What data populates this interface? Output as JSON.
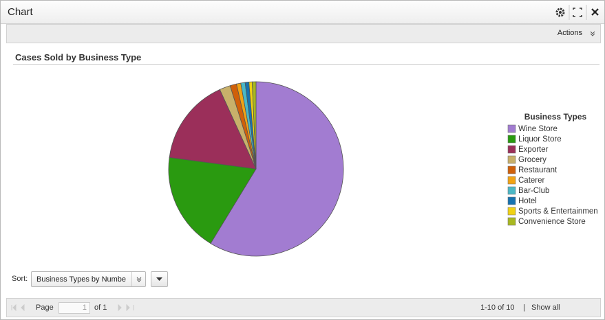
{
  "window": {
    "title": "Chart",
    "actions": "Actions",
    "sort_label": "Sort:",
    "sort_value": "Business Types by Numbe",
    "pager": {
      "page_label": "Page",
      "page_input": "1",
      "of": "of 1",
      "range": "1-10 of 10",
      "separator": "|",
      "show_all": "Show all"
    }
  },
  "chart_data": {
    "type": "pie",
    "title": "Cases Sold by Business Type",
    "legend_title": "Business Types",
    "categories": [
      "Wine Store",
      "Liquor Store",
      "Exporter",
      "Grocery",
      "Restaurant",
      "Caterer",
      "Bar-Club",
      "Hotel",
      "Sports & Entertainmen",
      "Convenience Store"
    ],
    "values": [
      58.7,
      18.4,
      16.1,
      2.0,
      1.2,
      0.8,
      0.8,
      0.7,
      0.6,
      0.7
    ],
    "colors": [
      "#a27cd1",
      "#2a9a10",
      "#9b2f5a",
      "#c8b06a",
      "#d0600a",
      "#f2a314",
      "#4bb8c6",
      "#1672b0",
      "#f0d214",
      "#a8b820"
    ],
    "legend": "right"
  }
}
